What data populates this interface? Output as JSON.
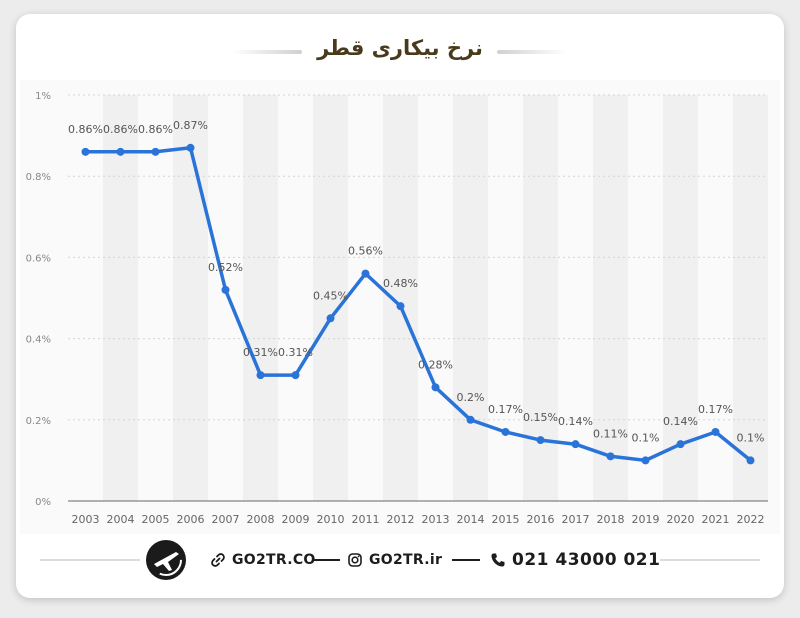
{
  "title": "نرخ بیکاری قطر",
  "chart_data": {
    "type": "line",
    "x": [
      "2003",
      "2004",
      "2005",
      "2006",
      "2007",
      "2008",
      "2009",
      "2010",
      "2011",
      "2012",
      "2013",
      "2014",
      "2015",
      "2016",
      "2017",
      "2018",
      "2019",
      "2020",
      "2021",
      "2022"
    ],
    "series": [
      {
        "values": [
          0.86,
          0.86,
          0.86,
          0.87,
          0.52,
          0.31,
          0.31,
          0.45,
          0.56,
          0.48,
          0.28,
          0.2,
          0.17,
          0.15,
          0.14,
          0.11,
          0.1,
          0.14,
          0.17,
          0.1
        ]
      }
    ],
    "data_labels": [
      "0.86%",
      "0.86%",
      "0.86%",
      "0.87%",
      "0.52%",
      "0.31%",
      "0.31%",
      "0.45%",
      "0.56%",
      "0.48%",
      "0.28%",
      "0.2%",
      "0.17%",
      "0.15%",
      "0.14%",
      "0.11%",
      "0.1%",
      "0.14%",
      "0.17%",
      "0.1%"
    ],
    "y_ticks": [
      0,
      0.2,
      0.4,
      0.6,
      0.8,
      1
    ],
    "y_tick_labels": [
      "0%",
      "0.2%",
      "0.4%",
      "0.6%",
      "0.8%",
      "1%"
    ],
    "ylim": [
      0,
      1
    ],
    "grid": true,
    "line_color": "#2a73d9",
    "xlabel": "",
    "ylabel": ""
  },
  "footer": {
    "website": "GO2TR.CO",
    "instagram": "GO2TR.ir",
    "phone": "021 43000 021",
    "link_icon": "link-icon",
    "instagram_icon": "instagram-icon",
    "phone_icon": "phone-icon",
    "logo_icon": "airplane-logo-icon"
  }
}
